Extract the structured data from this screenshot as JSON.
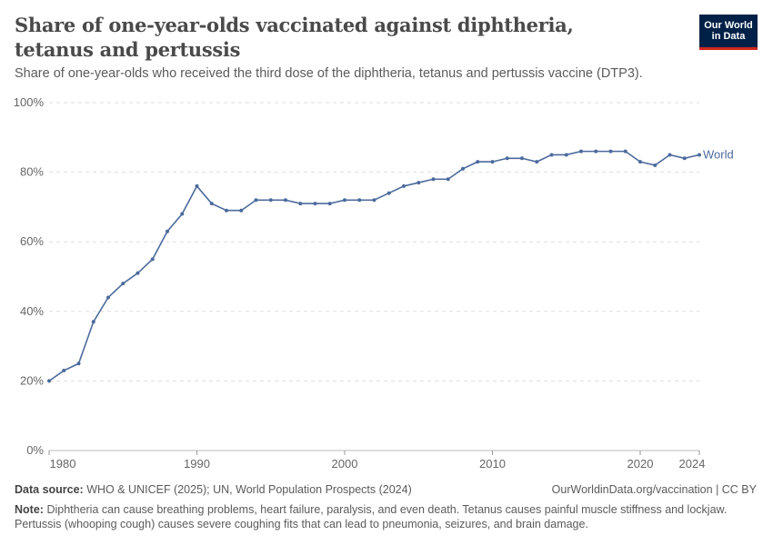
{
  "header": {
    "title": "Share of one-year-olds vaccinated against diphtheria, tetanus and pertussis",
    "subtitle": "Share of one-year-olds who received the third dose of the diphtheria, tetanus and pertussis vaccine (DTP3).",
    "logo_line1": "Our World",
    "logo_line2": "in Data"
  },
  "chart_data": {
    "type": "line",
    "title": "Share of one-year-olds vaccinated against diphtheria, tetanus and pertussis",
    "ylim": [
      0,
      100
    ],
    "xlim": [
      1980,
      2024
    ],
    "grid": "horizontal dashed",
    "y_ticks": [
      "0%",
      "20%",
      "40%",
      "60%",
      "80%",
      "100%"
    ],
    "x_ticks": [
      "1980",
      "1990",
      "2000",
      "2010",
      "2020",
      "2024"
    ],
    "x_tick_values": [
      1980,
      1990,
      2000,
      2010,
      2020,
      2024
    ],
    "legend_placement": "right end-label",
    "series": [
      {
        "name": "World",
        "color": "#4c6a9c",
        "x": [
          1980,
          1981,
          1982,
          1983,
          1984,
          1985,
          1986,
          1987,
          1988,
          1989,
          1990,
          1991,
          1992,
          1993,
          1994,
          1995,
          1996,
          1997,
          1998,
          1999,
          2000,
          2001,
          2002,
          2003,
          2004,
          2005,
          2006,
          2007,
          2008,
          2009,
          2010,
          2011,
          2012,
          2013,
          2014,
          2015,
          2016,
          2017,
          2018,
          2019,
          2020,
          2021,
          2022,
          2023,
          2024
        ],
        "values": [
          20,
          23,
          25,
          37,
          44,
          48,
          51,
          55,
          63,
          68,
          76,
          71,
          69,
          69,
          72,
          72,
          72,
          71,
          71,
          71,
          72,
          72,
          72,
          74,
          76,
          77,
          78,
          78,
          81,
          83,
          83,
          84,
          84,
          83,
          85,
          85,
          86,
          86,
          86,
          86,
          83,
          82,
          85,
          84,
          85
        ]
      }
    ]
  },
  "footer": {
    "source_label": "Data source:",
    "source": "WHO & UNICEF (2025); UN, World Population Prospects (2024)",
    "url": "OurWorldinData.org/vaccination | CC BY",
    "note_label": "Note:",
    "note": "Diphtheria can cause breathing problems, heart failure, paralysis, and even death. Tetanus causes painful muscle stiffness and lockjaw. Pertussis (whooping cough) causes severe coughing fits that can lead to pneumonia, seizures, and brain damage."
  }
}
